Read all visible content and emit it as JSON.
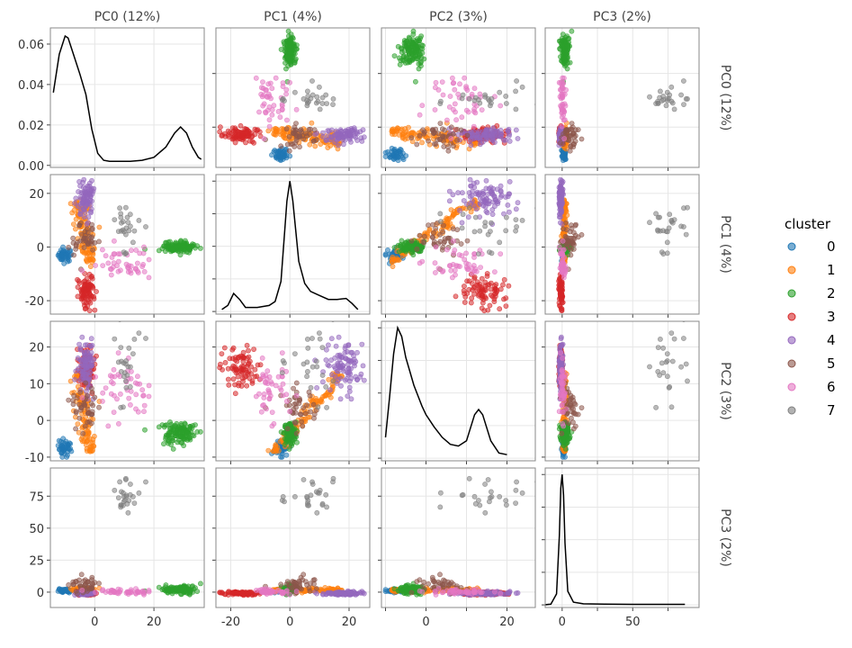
{
  "chart_data": {
    "type": "scatter",
    "title": "",
    "grid": true,
    "diagonal": "kde",
    "legend_position": "right",
    "legend": {
      "title": "cluster",
      "entries": [
        "0",
        "1",
        "2",
        "3",
        "4",
        "5",
        "6",
        "7"
      ]
    },
    "colors": {
      "0": "#1f77b4",
      "1": "#ff7f0e",
      "2": "#2ca02c",
      "3": "#d62728",
      "4": "#9467bd",
      "5": "#8c564b",
      "6": "#e377c2",
      "7": "#7f7f7f"
    },
    "variables": [
      {
        "key": "PC0",
        "label": "PC0 (12%)"
      },
      {
        "key": "PC1",
        "label": "PC1 (4%)"
      },
      {
        "key": "PC2",
        "label": "PC2 (3%)"
      },
      {
        "key": "PC3",
        "label": "PC3 (2%)"
      }
    ],
    "axis_ranges": {
      "PC0": [
        -15,
        37
      ],
      "PC1": [
        -25,
        27
      ],
      "PC2": [
        -11,
        27
      ],
      "PC3": [
        -12,
        97
      ]
    },
    "ticks": {
      "PC0": [
        0,
        20
      ],
      "PC1": [
        -20,
        0,
        20
      ],
      "PC2": [
        -10,
        0,
        10,
        20
      ],
      "PC3": [
        0,
        25,
        50,
        75
      ]
    },
    "bottom_ticks": {
      "PC0": [
        0,
        20
      ],
      "PC1": [
        -20,
        0,
        20
      ],
      "PC2": [
        0,
        20
      ],
      "PC3": [
        0,
        50
      ]
    },
    "density_axis": {
      "range": [
        -0.001,
        0.068
      ],
      "ticks": [
        0.0,
        0.02,
        0.04,
        0.06
      ],
      "tick_labels": [
        "0.00",
        "0.02",
        "0.04",
        "0.06"
      ]
    },
    "clusters": [
      {
        "name": "0",
        "n": 40,
        "center": [
          -10,
          -3,
          -7.5,
          1
        ],
        "spread": [
          1.2,
          1.2,
          1.2,
          0.8
        ]
      },
      {
        "name": "1",
        "n": 110,
        "center": [
          -4,
          8,
          4,
          1.5
        ],
        "spread": [
          1.5,
          1.0,
          1.0,
          0.8
        ],
        "axis": {
          "min": -6,
          "max": 17
        },
        "slope": [
          -0.12,
          1,
          0.95,
          0
        ]
      },
      {
        "name": "2",
        "n": 120,
        "center": [
          29,
          0,
          -3.5,
          2
        ],
        "spread": [
          3.0,
          1.0,
          1.5,
          1.5
        ]
      },
      {
        "name": "3",
        "n": 80,
        "center": [
          -3,
          -17,
          14,
          -1
        ],
        "spread": [
          1.5,
          3.0,
          3.0,
          0.7
        ]
      },
      {
        "name": "4",
        "n": 90,
        "center": [
          -3,
          19,
          15,
          -1
        ],
        "spread": [
          1.2,
          3.5,
          3.5,
          0.7
        ]
      },
      {
        "name": "5",
        "n": 40,
        "center": [
          -3,
          3,
          3,
          6
        ],
        "spread": [
          2.0,
          3.0,
          3.0,
          3.0
        ]
      },
      {
        "name": "6",
        "n": 45,
        "center": [
          10,
          -6,
          8,
          0
        ],
        "spread": [
          6.0,
          3.0,
          4.0,
          1.0
        ]
      },
      {
        "name": "7",
        "n": 25,
        "center": [
          10,
          8,
          16,
          77
        ],
        "spread": [
          3.0,
          4.0,
          5.0,
          8.0
        ]
      }
    ],
    "kde": {
      "PC0": {
        "x": [
          -14,
          -12,
          -10,
          -9,
          -7,
          -5,
          -3,
          -1,
          1,
          3,
          5,
          8,
          12,
          16,
          20,
          24,
          27,
          29,
          31,
          33,
          35,
          36
        ],
        "y": [
          0.036,
          0.055,
          0.064,
          0.063,
          0.054,
          0.045,
          0.035,
          0.018,
          0.006,
          0.0025,
          0.002,
          0.002,
          0.002,
          0.0025,
          0.004,
          0.009,
          0.016,
          0.019,
          0.016,
          0.009,
          0.004,
          0.003
        ]
      },
      "PC1": {
        "x": [
          -23,
          -21,
          -19,
          -17,
          -15,
          -13,
          -11,
          -9,
          -7,
          -5,
          -3,
          -1,
          0,
          1,
          3,
          5,
          7,
          10,
          13,
          16,
          19,
          21,
          23
        ],
        "y": [
          0.01,
          0.03,
          0.09,
          0.06,
          0.02,
          0.02,
          0.02,
          0.025,
          0.03,
          0.05,
          0.15,
          0.55,
          0.65,
          0.55,
          0.25,
          0.14,
          0.1,
          0.08,
          0.06,
          0.06,
          0.065,
          0.04,
          0.01
        ]
      },
      "PC2": {
        "x": [
          -10,
          -9,
          -8,
          -7,
          -6,
          -5,
          -4,
          -3,
          -2,
          -1,
          0,
          2,
          4,
          6,
          8,
          10,
          12,
          13,
          14,
          16,
          18,
          20
        ],
        "y": [
          0.12,
          0.35,
          0.6,
          0.75,
          0.7,
          0.58,
          0.5,
          0.42,
          0.36,
          0.3,
          0.25,
          0.18,
          0.12,
          0.08,
          0.07,
          0.1,
          0.25,
          0.28,
          0.25,
          0.1,
          0.03,
          0.02
        ]
      },
      "PC3": {
        "x": [
          -13,
          -8,
          -4,
          -2,
          -1,
          0,
          1,
          2,
          4,
          8,
          15,
          30,
          50,
          70,
          87
        ],
        "y": [
          0.0,
          0.005,
          0.08,
          0.5,
          0.85,
          0.95,
          0.8,
          0.45,
          0.1,
          0.02,
          0.008,
          0.005,
          0.004,
          0.004,
          0.004
        ]
      }
    }
  }
}
